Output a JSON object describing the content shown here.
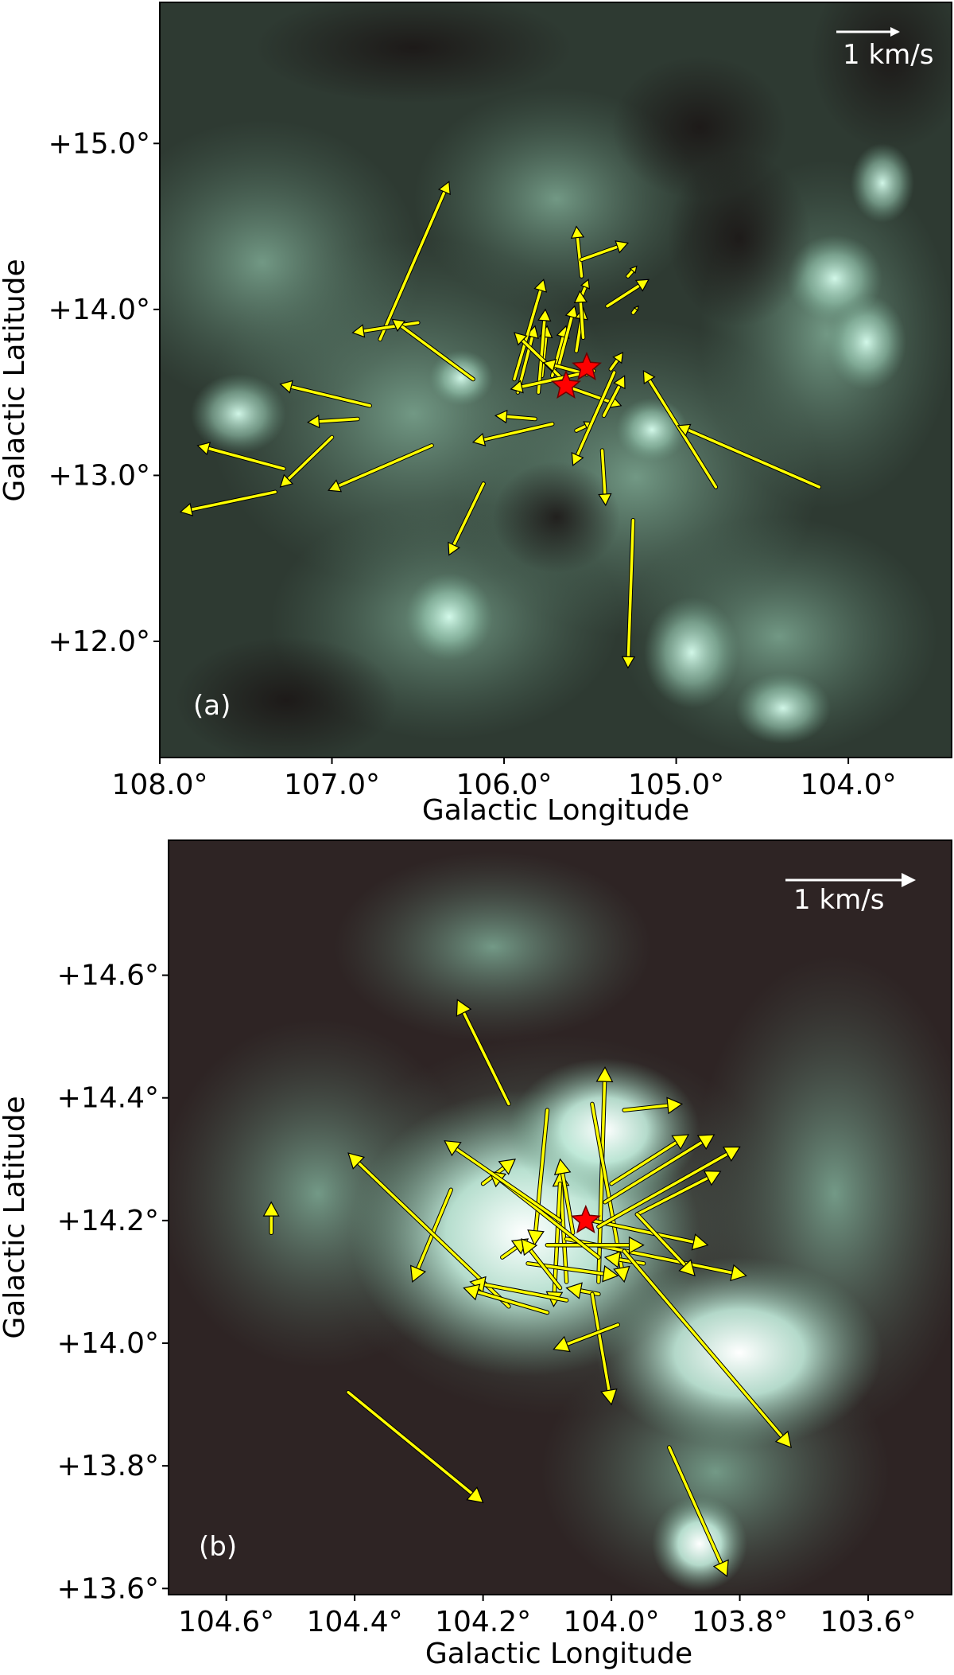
{
  "chart_data": [
    {
      "type": "vector-field",
      "panel_label": "(a)",
      "xlabel": "Galactic Longitude",
      "ylabel": "Galactic Latitude",
      "xlim": [
        108.0,
        103.4
      ],
      "ylim": [
        11.3,
        15.85
      ],
      "xticks": [
        {
          "value": 108.0,
          "label": "108.0°"
        },
        {
          "value": 107.0,
          "label": "107.0°"
        },
        {
          "value": 106.0,
          "label": "106.0°"
        },
        {
          "value": 105.0,
          "label": "105.0°"
        },
        {
          "value": 104.0,
          "label": "104.0°"
        }
      ],
      "yticks": [
        {
          "value": 15.0,
          "label": "+15.0°"
        },
        {
          "value": 14.0,
          "label": "+14.0°"
        },
        {
          "value": 13.0,
          "label": "+13.0°"
        },
        {
          "value": 12.0,
          "label": "+12.0°"
        }
      ],
      "scale_bar": {
        "label": "1 km/s",
        "length_deg": 0.36
      },
      "colors": {
        "arrow": "#ffff00",
        "star": "#ff0000",
        "background": "#2e3a32",
        "emission": "#cfeee0"
      },
      "stars": [
        {
          "l": 105.64,
          "b": 13.54
        },
        {
          "l": 105.52,
          "b": 13.65
        }
      ],
      "vectors": [
        {
          "l": 106.72,
          "b": 13.82,
          "dl": -0.4,
          "db": 0.95
        },
        {
          "l": 106.78,
          "b": 13.42,
          "dl": 0.52,
          "db": 0.13
        },
        {
          "l": 106.5,
          "b": 13.92,
          "dl": 0.38,
          "db": -0.06
        },
        {
          "l": 106.18,
          "b": 13.58,
          "dl": 0.47,
          "db": 0.36
        },
        {
          "l": 107.0,
          "b": 13.23,
          "dl": 0.3,
          "db": -0.3
        },
        {
          "l": 106.85,
          "b": 13.34,
          "dl": 0.29,
          "db": -0.02
        },
        {
          "l": 107.28,
          "b": 13.04,
          "dl": 0.5,
          "db": 0.14
        },
        {
          "l": 107.33,
          "b": 12.9,
          "dl": 0.55,
          "db": -0.12
        },
        {
          "l": 106.42,
          "b": 13.18,
          "dl": 0.6,
          "db": -0.27
        },
        {
          "l": 106.12,
          "b": 12.95,
          "dl": 0.2,
          "db": -0.43
        },
        {
          "l": 105.92,
          "b": 13.5,
          "dl": -0.1,
          "db": 0.4
        },
        {
          "l": 105.94,
          "b": 13.58,
          "dl": -0.17,
          "db": 0.6
        },
        {
          "l": 105.78,
          "b": 13.6,
          "dl": -0.03,
          "db": 0.3
        },
        {
          "l": 105.8,
          "b": 13.5,
          "dl": -0.04,
          "db": 0.5
        },
        {
          "l": 105.72,
          "b": 13.6,
          "dl": -0.08,
          "db": 0.3
        },
        {
          "l": 105.68,
          "b": 13.67,
          "dl": -0.09,
          "db": 0.35
        },
        {
          "l": 105.58,
          "b": 13.75,
          "dl": -0.04,
          "db": 0.26
        },
        {
          "l": 105.55,
          "b": 14.08,
          "dl": -0.04,
          "db": 0.1
        },
        {
          "l": 105.55,
          "b": 14.2,
          "dl": 0.03,
          "db": 0.3
        },
        {
          "l": 105.54,
          "b": 13.83,
          "dl": 0.02,
          "db": 0.28
        },
        {
          "l": 105.55,
          "b": 14.3,
          "dl": -0.27,
          "db": 0.1
        },
        {
          "l": 105.4,
          "b": 14.02,
          "dl": -0.24,
          "db": 0.16
        },
        {
          "l": 105.28,
          "b": 14.2,
          "dl": -0.05,
          "db": 0.06
        },
        {
          "l": 105.25,
          "b": 13.98,
          "dl": -0.03,
          "db": 0.04
        },
        {
          "l": 105.62,
          "b": 13.53,
          "dl": -0.3,
          "db": -0.11
        },
        {
          "l": 105.82,
          "b": 13.34,
          "dl": 0.23,
          "db": 0.02
        },
        {
          "l": 105.64,
          "b": 13.56,
          "dl": 0.3,
          "db": 0.3
        },
        {
          "l": 105.52,
          "b": 13.61,
          "dl": 0.25,
          "db": 0.07
        },
        {
          "l": 105.58,
          "b": 13.27,
          "dl": -0.1,
          "db": 0.05
        },
        {
          "l": 105.72,
          "b": 13.31,
          "dl": 0.46,
          "db": -0.11
        },
        {
          "l": 105.42,
          "b": 13.36,
          "dl": -0.12,
          "db": 0.24
        },
        {
          "l": 105.38,
          "b": 13.64,
          "dl": -0.07,
          "db": 0.1
        },
        {
          "l": 105.48,
          "b": 13.63,
          "dl": 0.48,
          "db": -0.11
        },
        {
          "l": 105.43,
          "b": 13.15,
          "dl": -0.02,
          "db": -0.33
        },
        {
          "l": 105.36,
          "b": 13.62,
          "dl": 0.24,
          "db": -0.56
        },
        {
          "l": 105.25,
          "b": 12.73,
          "dl": 0.03,
          "db": -0.89
        },
        {
          "l": 104.77,
          "b": 12.93,
          "dl": 0.42,
          "db": 0.7
        },
        {
          "l": 104.17,
          "b": 12.93,
          "dl": 0.82,
          "db": 0.37
        }
      ]
    },
    {
      "type": "vector-field",
      "panel_label": "(b)",
      "xlabel": "Galactic Longitude",
      "ylabel": "Galactic Latitude",
      "xlim": [
        104.69,
        103.47
      ],
      "ylim": [
        13.59,
        14.82
      ],
      "xticks": [
        {
          "value": 104.6,
          "label": "104.6°"
        },
        {
          "value": 104.4,
          "label": "104.4°"
        },
        {
          "value": 104.2,
          "label": "104.2°"
        },
        {
          "value": 104.0,
          "label": "104.0°"
        },
        {
          "value": 103.8,
          "label": "103.8°"
        },
        {
          "value": 103.6,
          "label": "103.6°"
        }
      ],
      "yticks": [
        {
          "value": 14.6,
          "label": "+14.6°"
        },
        {
          "value": 14.4,
          "label": "+14.4°"
        },
        {
          "value": 14.2,
          "label": "+14.2°"
        },
        {
          "value": 14.0,
          "label": "+14.0°"
        },
        {
          "value": 13.8,
          "label": "+13.8°"
        },
        {
          "value": 13.6,
          "label": "+13.6°"
        }
      ],
      "scale_bar": {
        "label": "1 km/s",
        "length_deg": 0.11
      },
      "colors": {
        "arrow": "#ffff00",
        "star": "#ff0000",
        "background": "#2e2424",
        "emission": "#e8fff6"
      },
      "stars": [
        {
          "l": 104.04,
          "b": 14.2
        }
      ],
      "vectors": [
        {
          "l": 104.16,
          "b": 14.39,
          "dl": 0.08,
          "db": 0.17
        },
        {
          "l": 104.1,
          "b": 14.38,
          "dl": 0.02,
          "db": -0.22
        },
        {
          "l": 104.02,
          "b": 14.1,
          "dl": -0.01,
          "db": 0.35
        },
        {
          "l": 104.03,
          "b": 14.39,
          "dl": -0.05,
          "db": -0.29
        },
        {
          "l": 104.07,
          "b": 14.1,
          "dl": 0.01,
          "db": 0.18
        },
        {
          "l": 104.08,
          "b": 14.26,
          "dl": 0.01,
          "db": -0.2
        },
        {
          "l": 104.06,
          "b": 14.18,
          "dl": 0.02,
          "db": 0.12
        },
        {
          "l": 104.25,
          "b": 14.25,
          "dl": 0.06,
          "db": -0.15
        },
        {
          "l": 104.2,
          "b": 14.26,
          "dl": -0.05,
          "db": 0.04
        },
        {
          "l": 104.07,
          "b": 14.17,
          "dl": -0.28,
          "db": -0.06
        },
        {
          "l": 104.03,
          "b": 14.2,
          "dl": -0.18,
          "db": -0.04
        },
        {
          "l": 104.1,
          "b": 14.16,
          "dl": -0.15,
          "db": 0.0
        },
        {
          "l": 104.17,
          "b": 14.14,
          "dl": -0.04,
          "db": 0.03
        },
        {
          "l": 104.13,
          "b": 14.13,
          "dl": -0.14,
          "db": -0.02
        },
        {
          "l": 103.98,
          "b": 14.38,
          "dl": -0.09,
          "db": 0.01
        },
        {
          "l": 104.0,
          "b": 14.26,
          "dl": -0.12,
          "db": 0.08
        },
        {
          "l": 103.96,
          "b": 14.21,
          "dl": -0.13,
          "db": 0.07
        },
        {
          "l": 104.01,
          "b": 14.23,
          "dl": -0.17,
          "db": 0.11
        },
        {
          "l": 104.02,
          "b": 14.19,
          "dl": -0.22,
          "db": 0.13
        },
        {
          "l": 104.02,
          "b": 14.14,
          "dl": 0.17,
          "db": 0.14
        },
        {
          "l": 104.08,
          "b": 14.2,
          "dl": 0.18,
          "db": 0.13
        },
        {
          "l": 104.16,
          "b": 14.06,
          "dl": 0.25,
          "db": 0.25
        },
        {
          "l": 104.07,
          "b": 14.07,
          "dl": 0.15,
          "db": 0.03
        },
        {
          "l": 104.1,
          "b": 14.05,
          "dl": 0.13,
          "db": 0.04
        },
        {
          "l": 104.02,
          "b": 14.08,
          "dl": 0.05,
          "db": 0.01
        },
        {
          "l": 103.95,
          "b": 14.13,
          "dl": 0.06,
          "db": 0.01
        },
        {
          "l": 104.03,
          "b": 14.08,
          "dl": -0.03,
          "db": -0.18
        },
        {
          "l": 104.08,
          "b": 14.09,
          "dl": 0.06,
          "db": 0.08
        },
        {
          "l": 103.99,
          "b": 14.03,
          "dl": 0.1,
          "db": -0.04
        },
        {
          "l": 103.96,
          "b": 14.21,
          "dl": -0.09,
          "db": -0.1
        },
        {
          "l": 103.98,
          "b": 14.15,
          "dl": -0.26,
          "db": -0.32
        },
        {
          "l": 104.41,
          "b": 13.92,
          "dl": -0.21,
          "db": -0.18
        },
        {
          "l": 103.91,
          "b": 13.83,
          "dl": -0.09,
          "db": -0.21
        },
        {
          "l": 104.53,
          "b": 14.18,
          "dl": 0.0,
          "db": 0.05
        }
      ]
    }
  ]
}
